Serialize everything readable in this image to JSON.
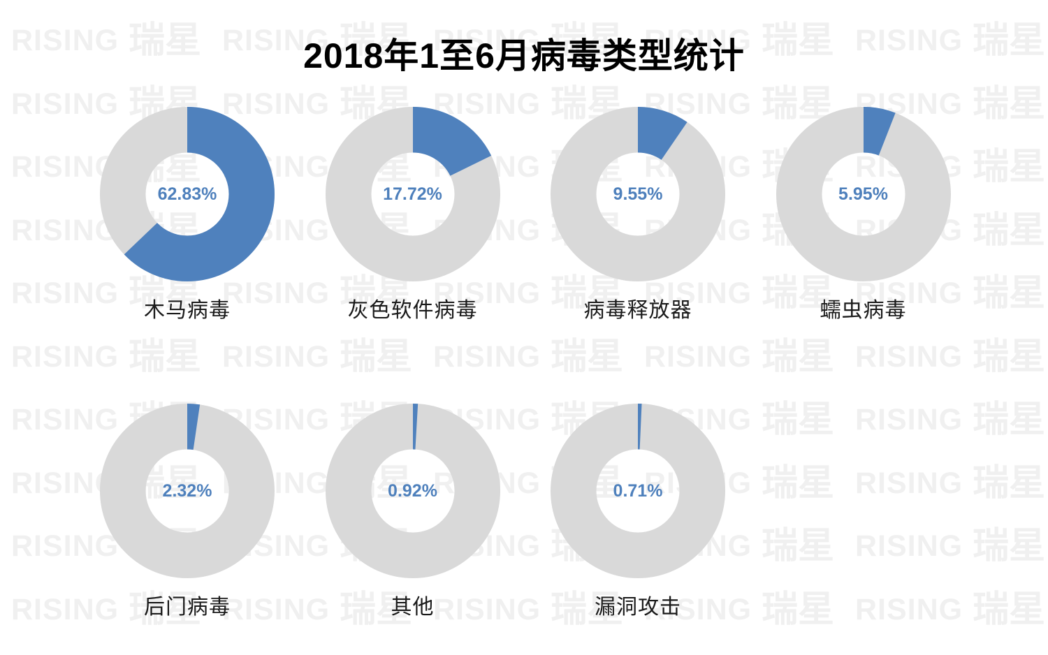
{
  "page": {
    "title": "2018年1至6月病毒类型统计",
    "background": "#ffffff"
  },
  "watermark": {
    "brand_latin": "RISING",
    "brand_cjk": "瑞星",
    "color": "#f0f0f0"
  },
  "colors": {
    "slice_blue": "#4F81BD",
    "ring_gray": "#D9D9D9",
    "percent_text": "#4E80BC",
    "label_text": "#1a1a1a",
    "title_text": "#000000"
  },
  "chart_data": {
    "type": "pie",
    "subtype": "donut-small-multiples",
    "title": "2018年1至6月病毒类型统计",
    "unit": "%",
    "legend_position": "none",
    "series": [
      {
        "label": "木马病毒",
        "value": 62.83,
        "display": "62.83%"
      },
      {
        "label": "灰色软件病毒",
        "value": 17.72,
        "display": "17.72%"
      },
      {
        "label": "病毒释放器",
        "value": 9.55,
        "display": "9.55%"
      },
      {
        "label": "蠕虫病毒",
        "value": 5.95,
        "display": "5.95%"
      },
      {
        "label": "后门病毒",
        "value": 2.32,
        "display": "2.32%"
      },
      {
        "label": "其他",
        "value": 0.92,
        "display": "0.92%"
      },
      {
        "label": "漏洞攻击",
        "value": 0.71,
        "display": "0.71%"
      }
    ],
    "layout_hint": {
      "rows": [
        4,
        3
      ],
      "start_angle_deg": 0,
      "direction": "clockwise",
      "donut_hole_ratio": 0.48,
      "slice_color": "#4F81BD",
      "remainder_color": "#D9D9D9"
    }
  }
}
